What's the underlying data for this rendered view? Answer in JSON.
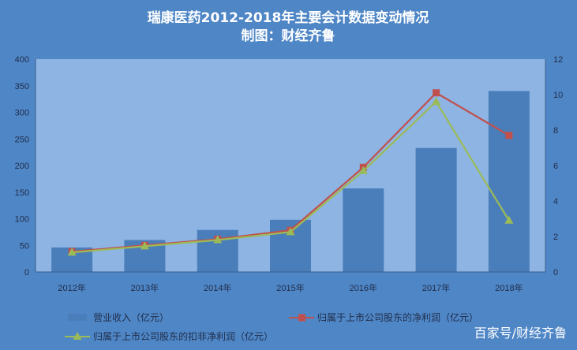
{
  "chart_data": {
    "type": "bar",
    "title": "瑞康医药2012-2018年主要会计数据变动情况",
    "subtitle": "制图：财经齐鲁",
    "categories": [
      "2012年",
      "2013年",
      "2014年",
      "2015年",
      "2016年",
      "2017年",
      "2018年"
    ],
    "ylim": [
      0,
      400
    ],
    "y_ticks": [
      "0",
      "50",
      "100",
      "150",
      "200",
      "250",
      "300",
      "350",
      "400"
    ],
    "y2lim": [
      0,
      12
    ],
    "y2_ticks": [
      "0",
      "2",
      "4",
      "6",
      "8",
      "10",
      "12"
    ],
    "grid": false,
    "legend_position": "bottom",
    "series": [
      {
        "name": "营业收入（亿元）",
        "type": "bar",
        "axis": "left",
        "color": "#4a7ebb",
        "values": [
          46,
          60,
          79,
          98,
          157,
          233,
          340
        ]
      },
      {
        "name": "归属于上市公司股东的净利润（亿元）",
        "type": "line",
        "axis": "right",
        "color": "#c0504d",
        "marker": "square",
        "values": [
          1.15,
          1.5,
          1.85,
          2.35,
          5.9,
          10.1,
          7.7
        ]
      },
      {
        "name": "归属于上市公司股东的扣非净利润（亿元）",
        "type": "line",
        "axis": "right",
        "color": "#9bbb59",
        "marker": "triangle",
        "values": [
          1.1,
          1.45,
          1.8,
          2.25,
          5.7,
          9.6,
          2.9
        ]
      }
    ],
    "watermark": "百家号/财经齐鲁"
  }
}
